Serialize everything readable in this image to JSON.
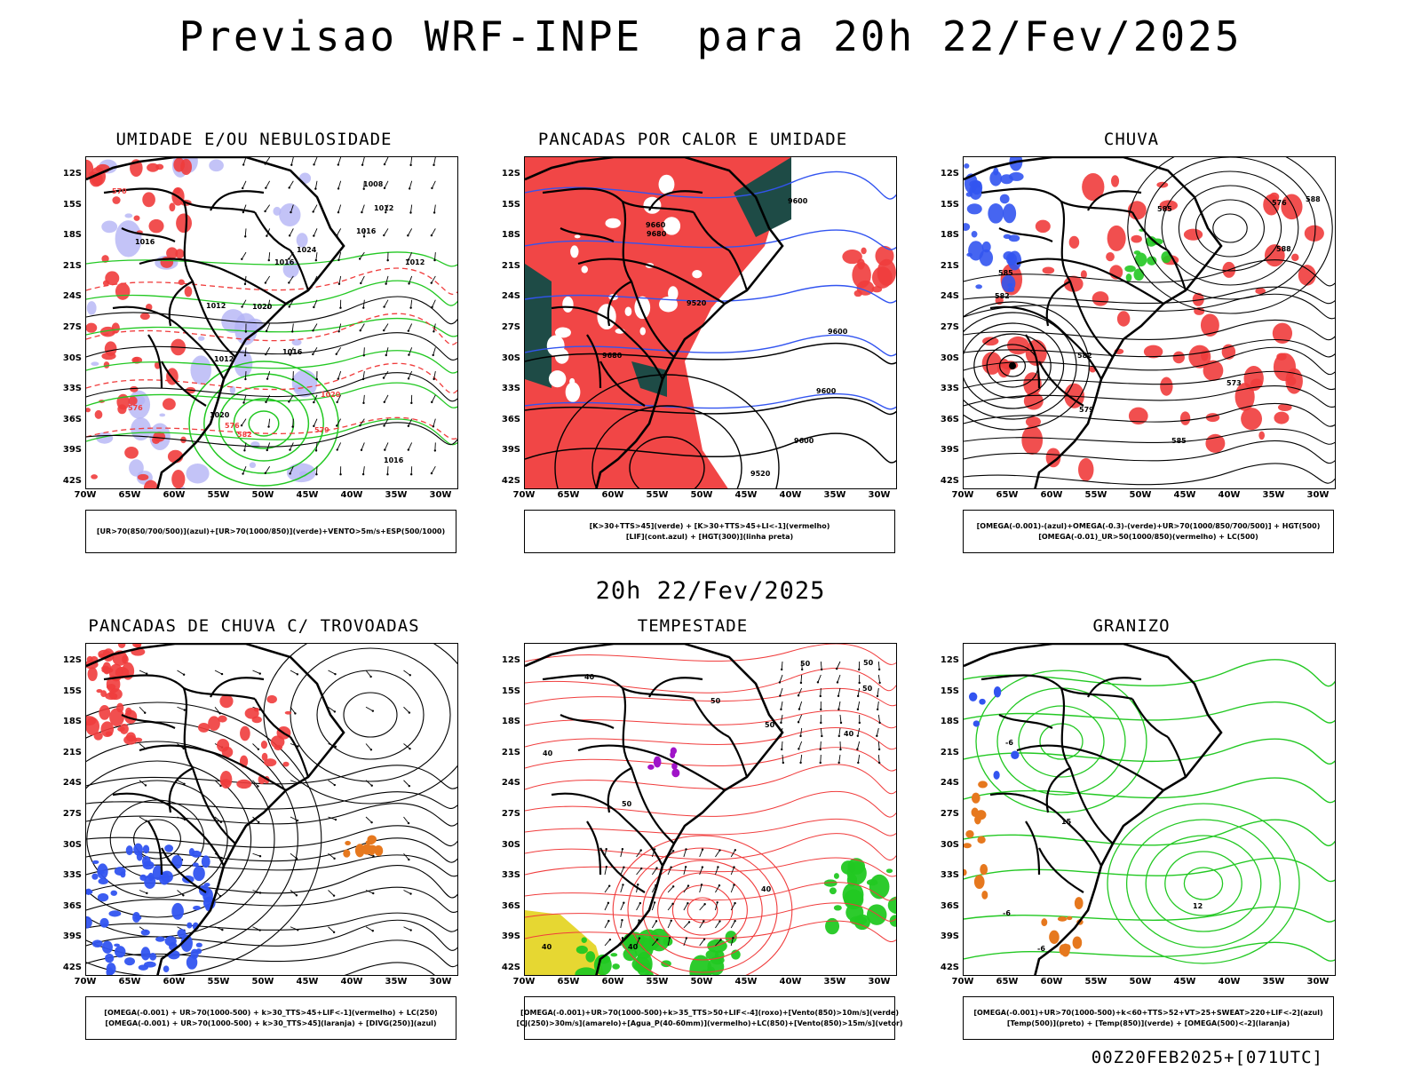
{
  "main_title": "Previsao WRF-INPE  para 20h 22/Fev/2025",
  "mid_title": "20h 22/Fev/2025",
  "footer": "00Z20FEB2025+[071UTC]",
  "lat_ticks": [
    "12S",
    "15S",
    "18S",
    "21S",
    "24S",
    "27S",
    "30S",
    "33S",
    "36S",
    "39S",
    "42S"
  ],
  "lon_ticks": [
    "70W",
    "65W",
    "60W",
    "55W",
    "50W",
    "45W",
    "40W",
    "35W",
    "30W"
  ],
  "colors": {
    "red": "#f03c3c",
    "green": "#22c822",
    "blue": "#3254f0",
    "lavender": "#b4b4f5",
    "darkteal": "#1e4b46",
    "yellow": "#e6d732",
    "orange": "#e6781e",
    "purple": "#a014c8"
  },
  "panels": [
    {
      "title": "UMIDADE E/OU NEBULOSIDADE",
      "legend": [
        "[UR>70(850/700/500)](azul)+[UR>70(1000/850)](verde)+VENTO>5m/s+ESP(500/1000)"
      ],
      "contour_labels": [
        "1012",
        "1016",
        "1016",
        "1020",
        "1012",
        "1016",
        "1016",
        "1020",
        "1024",
        "1012",
        "1008",
        "1012",
        "1016",
        "1020",
        "576",
        "570",
        "582",
        "576",
        "579"
      ]
    },
    {
      "title": "PANCADAS POR CALOR E UMIDADE",
      "legend": [
        "[K>30+TTS>45](verde) + [K>30+TTS>45+LI<-1](vermelho)",
        "[LIF](cont.azul) + [HGT(300)](linha preta)"
      ],
      "contour_labels": [
        "9600",
        "9660",
        "9600",
        "9680",
        "9680",
        "9600",
        "9520",
        "9600",
        "9520"
      ]
    },
    {
      "title": "CHUVA",
      "legend": [
        "[OMEGA(-0.001)-(azul)+OMEGA(-0.3)-(verde)+UR>70(1000/850/700/500)] + HGT(500)",
        "[OMEGA(-0.01)_UR>50(1000/850)(vermelho) + LC(500)"
      ],
      "contour_labels": [
        "585",
        "585",
        "588",
        "582",
        "579",
        "576",
        "573",
        "585",
        "582",
        "588"
      ]
    },
    {
      "title": "PANCADAS DE CHUVA C/ TROVOADAS",
      "legend": [
        "[OMEGA(-0.001) + UR>70(1000-500) + k>30_TTS>45+LIF<-1](vermelho) + LC(250)",
        "[OMEGA(-0.001) + UR>70(1000-500) + k>30_TTS>45](laranja) + [DIVG(250)](azul)"
      ],
      "contour_labels": []
    },
    {
      "title": "TEMPESTADE",
      "legend": [
        "[OMEGA(-0.001)+UR>70(1000-500)+k>35_TTS>50+LIF<-4](roxo)+[Vento(850)>10m/s](verde)",
        "[CJ(250)>30m/s](amarelo)+[Agua_P(40-60mm)](vermelho)+LC(850)+[Vento(850)>15m/s](vetor)"
      ],
      "contour_labels": [
        "50",
        "50",
        "40",
        "50",
        "40",
        "40",
        "50",
        "50",
        "40",
        "40",
        "50",
        "40"
      ]
    },
    {
      "title": "GRANIZO",
      "legend": [
        "[OMEGA(-0.001)+UR>70(1000-500)+k<60+TTS>52+VT>25+SWEAT>220+LIF<-2](azul)",
        "[Temp(500)](preto) + [Temp(850)](verde) + [OMEGA(500)<-2](laranja)"
      ],
      "contour_labels": [
        "-6",
        "-6",
        "-6",
        "12",
        "15"
      ]
    }
  ]
}
